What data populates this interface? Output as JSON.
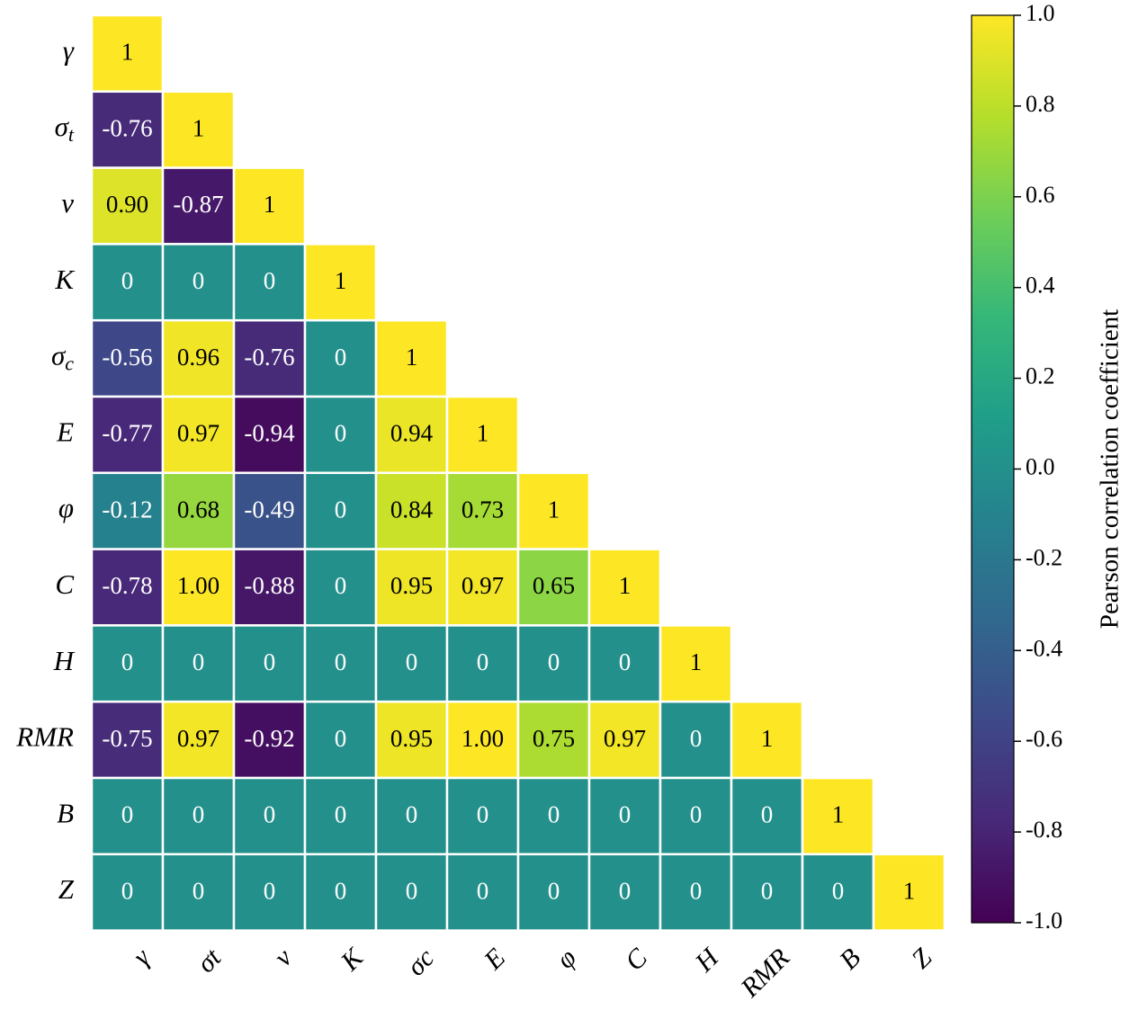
{
  "chart_data": {
    "type": "heatmap",
    "variant": "lower-triangular correlation matrix",
    "row_labels": [
      "γ",
      "σ_t",
      "ν",
      "K",
      "σ_c",
      "E",
      "φ",
      "C",
      "H",
      "RMR",
      "B",
      "Z"
    ],
    "col_labels": [
      "γ",
      "σt",
      "ν",
      "K",
      "σc",
      "E",
      "φ",
      "C",
      "H",
      "RMR",
      "B",
      "Z"
    ],
    "value_labels": [
      [
        "1"
      ],
      [
        "-0.76",
        "1"
      ],
      [
        "0.90",
        "-0.87",
        "1"
      ],
      [
        "0",
        "0",
        "0",
        "1"
      ],
      [
        "-0.56",
        "0.96",
        "-0.76",
        "0",
        "1"
      ],
      [
        "-0.77",
        "0.97",
        "-0.94",
        "0",
        "0.94",
        "1"
      ],
      [
        "-0.12",
        "0.68",
        "-0.49",
        "0",
        "0.84",
        "0.73",
        "1"
      ],
      [
        "-0.78",
        "1.00",
        "-0.88",
        "0",
        "0.95",
        "0.97",
        "0.65",
        "1"
      ],
      [
        "0",
        "0",
        "0",
        "0",
        "0",
        "0",
        "0",
        "0",
        "1"
      ],
      [
        "-0.75",
        "0.97",
        "-0.92",
        "0",
        "0.95",
        "1.00",
        "0.75",
        "0.97",
        "0",
        "1"
      ],
      [
        "0",
        "0",
        "0",
        "0",
        "0",
        "0",
        "0",
        "0",
        "0",
        "0",
        "1"
      ],
      [
        "0",
        "0",
        "0",
        "0",
        "0",
        "0",
        "0",
        "0",
        "0",
        "0",
        "0",
        "1"
      ]
    ],
    "colormap": "viridis",
    "colormap_stops": [
      "#440154",
      "#482878",
      "#3e4989",
      "#31688e",
      "#26828e",
      "#1f9e89",
      "#35b779",
      "#6ece58",
      "#b5de2b",
      "#fde725"
    ],
    "vmin": -1.0,
    "vmax": 1.0,
    "colorbar": {
      "label": "Pearson correlation coefficient",
      "ticks": [
        1.0,
        0.8,
        0.6,
        0.4,
        0.2,
        0.0,
        -0.2,
        -0.4,
        -0.6,
        -0.8,
        -1.0
      ],
      "tick_labels": [
        "1.0",
        "0.8",
        "0.6",
        "0.4",
        "0.2",
        "0.0",
        "-0.2",
        "-0.4",
        "-0.6",
        "-0.8",
        "-1.0"
      ]
    },
    "grid": true,
    "cell_border_color": "#ffffff",
    "dark_text_color": "#000000",
    "light_text_color": "#ffffff"
  }
}
